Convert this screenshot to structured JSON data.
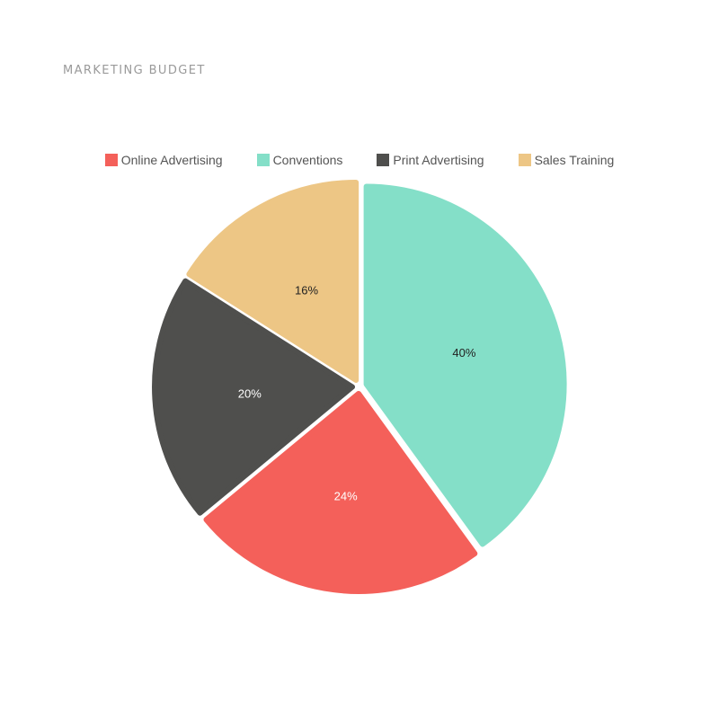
{
  "chart_data": {
    "type": "pie",
    "title": "MARKETING BUDGET",
    "legend_position": "top",
    "slices": [
      {
        "label": "Conventions",
        "value": 40,
        "display": "40%",
        "color": "#84dfc8",
        "text_color": "#222222"
      },
      {
        "label": "Online Advertising",
        "value": 24,
        "display": "24%",
        "color": "#f4605a",
        "text_color": "#ffffff"
      },
      {
        "label": "Print Advertising",
        "value": 20,
        "display": "20%",
        "color": "#4f4f4d",
        "text_color": "#ffffff"
      },
      {
        "label": "Sales Training",
        "value": 16,
        "display": "16%",
        "color": "#edc685",
        "text_color": "#222222"
      }
    ],
    "legend": [
      {
        "label": "Online Advertising",
        "color": "#f4605a"
      },
      {
        "label": "Conventions",
        "color": "#84dfc8"
      },
      {
        "label": "Print Advertising",
        "color": "#4f4f4d"
      },
      {
        "label": "Sales Training",
        "color": "#edc685"
      }
    ]
  }
}
